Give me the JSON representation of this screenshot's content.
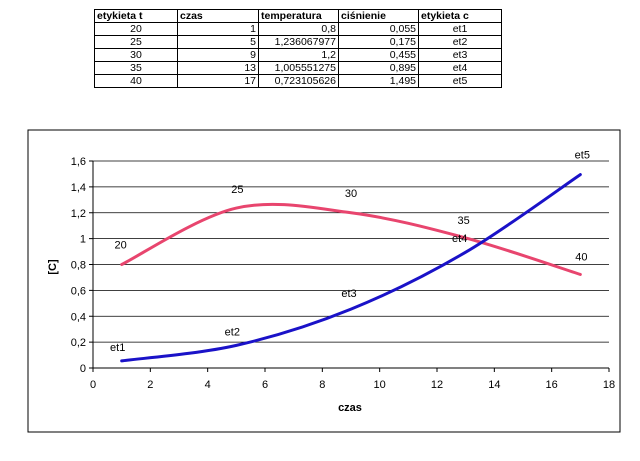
{
  "table": {
    "headers": [
      "etykieta t",
      "czas",
      "temperatura",
      "ciśnienie",
      "etykieta c"
    ],
    "rows": [
      [
        "20",
        "1",
        "0,8",
        "0,055",
        "et1"
      ],
      [
        "25",
        "5",
        "1,236067977",
        "0,175",
        "et2"
      ],
      [
        "30",
        "9",
        "1,2",
        "0,455",
        "et3"
      ],
      [
        "35",
        "13",
        "1,005551275",
        "0,895",
        "et4"
      ],
      [
        "40",
        "17",
        "0,723105626",
        "1,495",
        "et5"
      ]
    ]
  },
  "chart_data": {
    "type": "line",
    "title": "",
    "xlabel": "czas",
    "ylabel": "[C]",
    "xlim": [
      0,
      18
    ],
    "ylim": [
      0,
      1.6
    ],
    "xticks": [
      0,
      2,
      4,
      6,
      8,
      10,
      12,
      14,
      16,
      18
    ],
    "yticks": [
      0,
      0.2,
      0.4,
      0.6,
      0.8,
      1,
      1.2,
      1.4,
      1.6
    ],
    "xtick_labels": [
      "0",
      "2",
      "4",
      "6",
      "8",
      "10",
      "12",
      "14",
      "16",
      "18"
    ],
    "ytick_labels": [
      "0",
      "0,2",
      "0,4",
      "0,6",
      "0,8",
      "1",
      "1,2",
      "1,4",
      "1,6"
    ],
    "grid": "horizontal",
    "legend": "none",
    "smooth": true,
    "series": [
      {
        "color": "#e8456e",
        "x": [
          1,
          5,
          9,
          13,
          17
        ],
        "y": [
          0.8,
          1.236067977,
          1.2,
          1.005551275,
          0.723105626
        ],
        "point_labels": [
          "20",
          "25",
          "30",
          "35",
          "40"
        ]
      },
      {
        "color": "#1a12c8",
        "x": [
          1,
          5,
          9,
          13,
          17
        ],
        "y": [
          0.055,
          0.175,
          0.455,
          0.895,
          1.495
        ],
        "point_labels": [
          "et1",
          "et2",
          "et3",
          "et4",
          "et5"
        ]
      }
    ]
  }
}
